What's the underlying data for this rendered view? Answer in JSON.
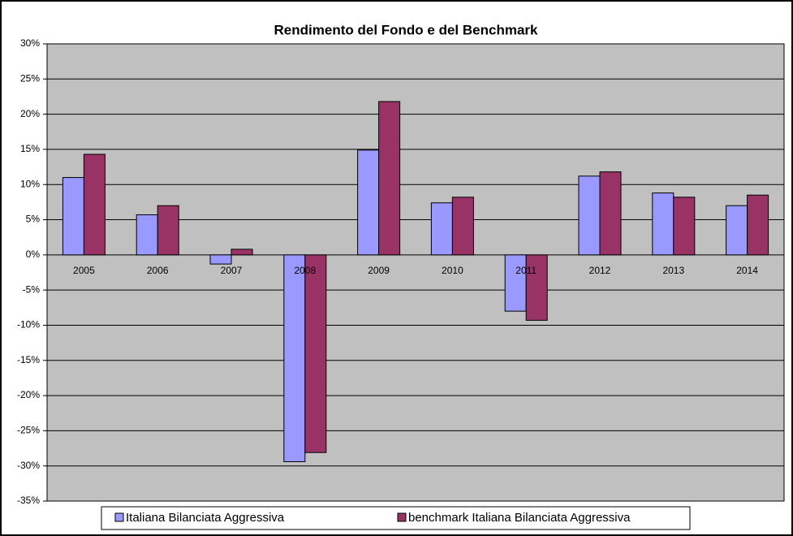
{
  "chart_data": {
    "type": "bar",
    "title": "Rendimento del Fondo e del Benchmark",
    "categories": [
      "2005",
      "2006",
      "2007",
      "2008",
      "2009",
      "2010",
      "2011",
      "2012",
      "2013",
      "2014"
    ],
    "series": [
      {
        "name": "Italiana Bilanciata Aggressiva",
        "color": "#9999ff",
        "values": [
          11.0,
          5.7,
          -1.3,
          -29.4,
          14.9,
          7.4,
          -8.0,
          11.2,
          8.8,
          7.0
        ]
      },
      {
        "name": "benchmark Italiana Bilanciata Aggressiva",
        "color": "#993366",
        "values": [
          14.3,
          7.0,
          0.8,
          -28.1,
          21.8,
          8.2,
          -9.3,
          11.8,
          8.2,
          8.5
        ]
      }
    ],
    "ylim": [
      -35,
      30
    ],
    "yticks": [
      {
        "value": -35,
        "label": "-35%"
      },
      {
        "value": -30,
        "label": "-30%"
      },
      {
        "value": -25,
        "label": "-25%"
      },
      {
        "value": -20,
        "label": "-20%"
      },
      {
        "value": -15,
        "label": "-15%"
      },
      {
        "value": -10,
        "label": "-10%"
      },
      {
        "value": -5,
        "label": "-5%"
      },
      {
        "value": 0,
        "label": "0%"
      },
      {
        "value": 5,
        "label": "5%"
      },
      {
        "value": 10,
        "label": "10%"
      },
      {
        "value": 15,
        "label": "15%"
      },
      {
        "value": 20,
        "label": "20%"
      },
      {
        "value": 25,
        "label": "25%"
      },
      {
        "value": 30,
        "label": "30%"
      }
    ],
    "grid": true,
    "legend": "bottom",
    "plot_color": "#c0c0c0"
  }
}
